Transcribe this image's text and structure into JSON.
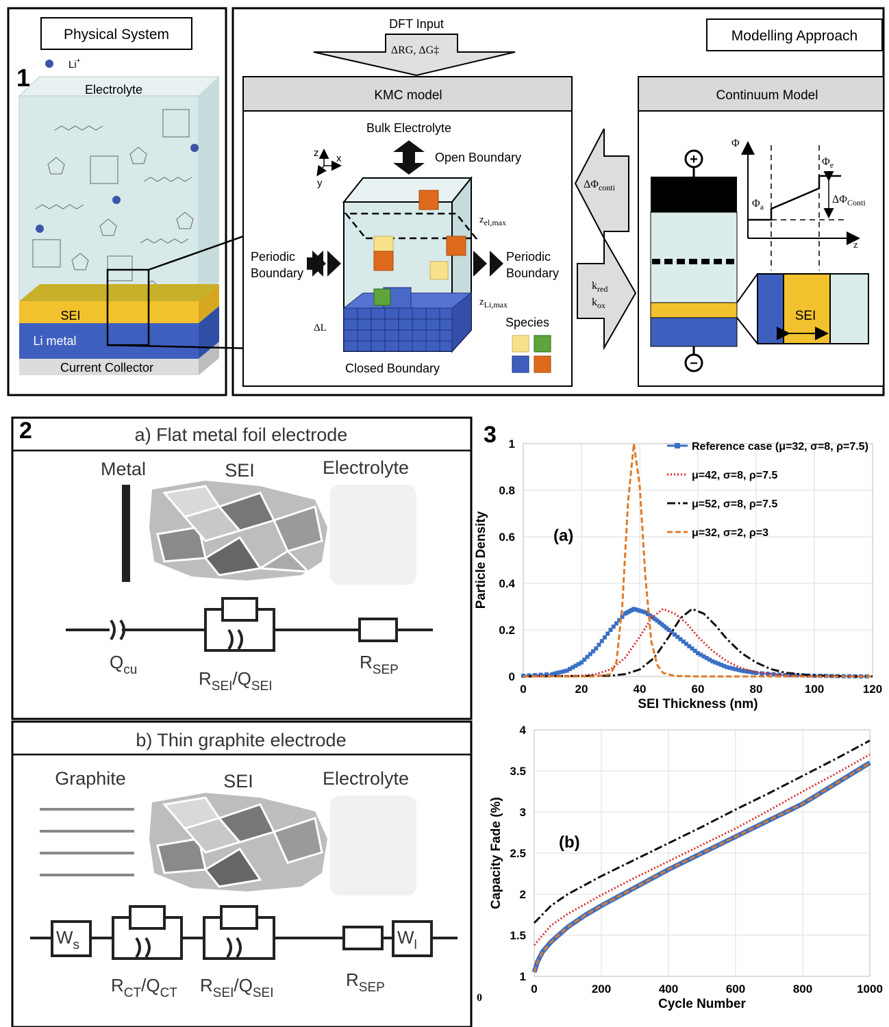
{
  "panel1": {
    "number": "1",
    "physical_title": "Physical System",
    "li_label": "Li",
    "li_sup": "+",
    "electrolyte": "Electrolyte",
    "sei": "SEI",
    "li_metal": "Li metal",
    "collector": "Current  Collector",
    "dft": "DFT Input",
    "dft_formula": "ΔRG, ΔG‡",
    "modelling": "Modelling Approach",
    "kmc": "KMC  model",
    "continuum": "Continuum Model",
    "bulk": "Bulk Electrolyte",
    "open": "Open Boundary",
    "periodic": "Periodic",
    "boundary": "Boundary",
    "closed": "Closed Boundary",
    "species": "Species",
    "z_el": "z",
    "z_el_sub": "el,max",
    "z_li": "z",
    "z_li_sub": "Li,max",
    "delta_l": "ΔL",
    "axis_z": "z",
    "axis_x": "x",
    "axis_y": "y",
    "dphi": "ΔΦ",
    "dphi_sub": "conti",
    "k_red": "k",
    "k_red_sub": "red",
    "k_ox": "k",
    "k_ox_sub": "ox",
    "phi": "Φ",
    "phi_e": "Φ",
    "phi_e_sub": "e",
    "phi_a": "Φ",
    "phi_a_sub": "a",
    "dphi_conti": "ΔΦ",
    "dphi_conti_sub": "Conti",
    "z_axis": "z",
    "sei_box": "SEI",
    "plus": "+",
    "minus": "−"
  },
  "panel2": {
    "number": "2",
    "a_title": "a) Flat metal foil electrode",
    "metal": "Metal",
    "sei": "SEI",
    "electrolyte": "Electrolyte",
    "q_cu": "Q",
    "q_cu_sub": "cu",
    "rsei": "R",
    "rsei_sub": "SEI",
    "qsei": "/Q",
    "qsei_sub": "SEI",
    "rsep": "R",
    "rsep_sub": "SEP",
    "b_title": "b) Thin graphite electrode",
    "graphite": "Graphite",
    "ws": "W",
    "ws_sub": "s",
    "wl": "W",
    "wl_sub": "l",
    "rct": "R",
    "rct_sub": "CT",
    "qct": "/Q",
    "qct_sub": "CT"
  },
  "panel3": {
    "number": "3",
    "stray_zero": "0"
  },
  "chart_data": [
    {
      "type": "line",
      "label": "(a)",
      "xlabel": "SEI Thickness (nm)",
      "ylabel": "Particle Density",
      "xlim": [
        0,
        120
      ],
      "ylim": [
        0,
        1
      ],
      "xticks": [
        0,
        20,
        40,
        60,
        80,
        100,
        120
      ],
      "yticks": [
        0,
        0.2,
        0.4,
        0.6,
        0.8,
        1
      ],
      "ytick_labels": [
        "0",
        "0.2",
        "0.4",
        "0.6",
        "0.8",
        "1"
      ],
      "legend_position": "top-right",
      "series": [
        {
          "name": "Reference case (μ=32, σ=8, ρ=7.5)",
          "color": "#3a6fc4",
          "style": "solid-square",
          "x": [
            0,
            10,
            15,
            20,
            25,
            30,
            35,
            38,
            42,
            46,
            50,
            55,
            60,
            65,
            70,
            75,
            80,
            90,
            100,
            110,
            120
          ],
          "y": [
            0.003,
            0.01,
            0.025,
            0.06,
            0.12,
            0.2,
            0.27,
            0.29,
            0.275,
            0.24,
            0.2,
            0.15,
            0.1,
            0.065,
            0.04,
            0.025,
            0.015,
            0.006,
            0.003,
            0.001,
            0.0
          ]
        },
        {
          "name": "μ=42, σ=8, ρ=7.5",
          "color": "#d62728",
          "style": "dotted",
          "x": [
            0,
            20,
            25,
            30,
            35,
            40,
            44,
            48,
            52,
            56,
            60,
            65,
            70,
            75,
            80,
            90,
            100,
            120
          ],
          "y": [
            0,
            0.003,
            0.01,
            0.03,
            0.08,
            0.17,
            0.25,
            0.29,
            0.27,
            0.23,
            0.17,
            0.11,
            0.065,
            0.035,
            0.018,
            0.005,
            0.001,
            0
          ]
        },
        {
          "name": "μ=52, σ=8, ρ=7.5",
          "color": "#111111",
          "style": "dash-dot",
          "x": [
            0,
            30,
            35,
            40,
            45,
            50,
            54,
            58,
            62,
            66,
            70,
            75,
            80,
            85,
            90,
            100,
            110,
            120
          ],
          "y": [
            0,
            0.003,
            0.01,
            0.03,
            0.08,
            0.17,
            0.25,
            0.29,
            0.27,
            0.22,
            0.16,
            0.1,
            0.06,
            0.032,
            0.016,
            0.004,
            0.001,
            0
          ]
        },
        {
          "name": "μ=32, σ=2, ρ=3",
          "color": "#e07b28",
          "style": "dashed",
          "x": [
            0,
            25,
            30,
            32,
            34,
            36,
            38,
            40,
            42,
            44,
            46,
            48,
            52,
            60,
            120
          ],
          "y": [
            0,
            0,
            0.01,
            0.06,
            0.3,
            0.75,
            1.0,
            0.82,
            0.42,
            0.15,
            0.05,
            0.015,
            0.002,
            0,
            0
          ]
        }
      ]
    },
    {
      "type": "line",
      "label": "(b)",
      "xlabel": "Cycle Number",
      "ylabel": "Capacity Fade (%)",
      "xlim": [
        0,
        1000
      ],
      "ylim": [
        1,
        4
      ],
      "xticks": [
        0,
        200,
        400,
        600,
        800,
        1000
      ],
      "yticks": [
        1,
        1.5,
        2,
        2.5,
        3,
        3.5,
        4
      ],
      "ytick_labels": [
        "1",
        "1.5",
        "2",
        "2.5",
        "3",
        "3.5",
        "4"
      ],
      "series": [
        {
          "name": "Reference case (μ=32, σ=8, ρ=7.5)",
          "color": "#3a6fc4",
          "style": "thick",
          "x": [
            0,
            10,
            25,
            50,
            100,
            150,
            200,
            300,
            400,
            500,
            600,
            700,
            800,
            900,
            1000
          ],
          "y": [
            1.05,
            1.18,
            1.3,
            1.42,
            1.6,
            1.74,
            1.86,
            2.08,
            2.3,
            2.5,
            2.7,
            2.9,
            3.1,
            3.35,
            3.6
          ]
        },
        {
          "name": "μ=42, σ=8, ρ=7.5",
          "color": "#d62728",
          "style": "dotted",
          "x": [
            0,
            50,
            100,
            200,
            300,
            400,
            500,
            600,
            700,
            800,
            900,
            1000
          ],
          "y": [
            1.38,
            1.62,
            1.76,
            1.99,
            2.2,
            2.4,
            2.6,
            2.8,
            3.02,
            3.25,
            3.47,
            3.7
          ]
        },
        {
          "name": "μ=52, σ=8, ρ=7.5",
          "color": "#111111",
          "style": "dash-dot",
          "x": [
            0,
            50,
            100,
            200,
            300,
            400,
            500,
            600,
            700,
            800,
            900,
            1000
          ],
          "y": [
            1.65,
            1.86,
            2.0,
            2.22,
            2.42,
            2.62,
            2.82,
            3.03,
            3.23,
            3.44,
            3.65,
            3.87
          ]
        },
        {
          "name": "μ=32, σ=2, ρ=3",
          "color": "#e07b28",
          "style": "dashed",
          "x": [
            0,
            10,
            25,
            50,
            100,
            150,
            200,
            300,
            400,
            500,
            600,
            700,
            800,
            900,
            1000
          ],
          "y": [
            1.05,
            1.18,
            1.3,
            1.42,
            1.6,
            1.74,
            1.86,
            2.08,
            2.3,
            2.5,
            2.7,
            2.9,
            3.1,
            3.35,
            3.6
          ]
        }
      ]
    }
  ]
}
